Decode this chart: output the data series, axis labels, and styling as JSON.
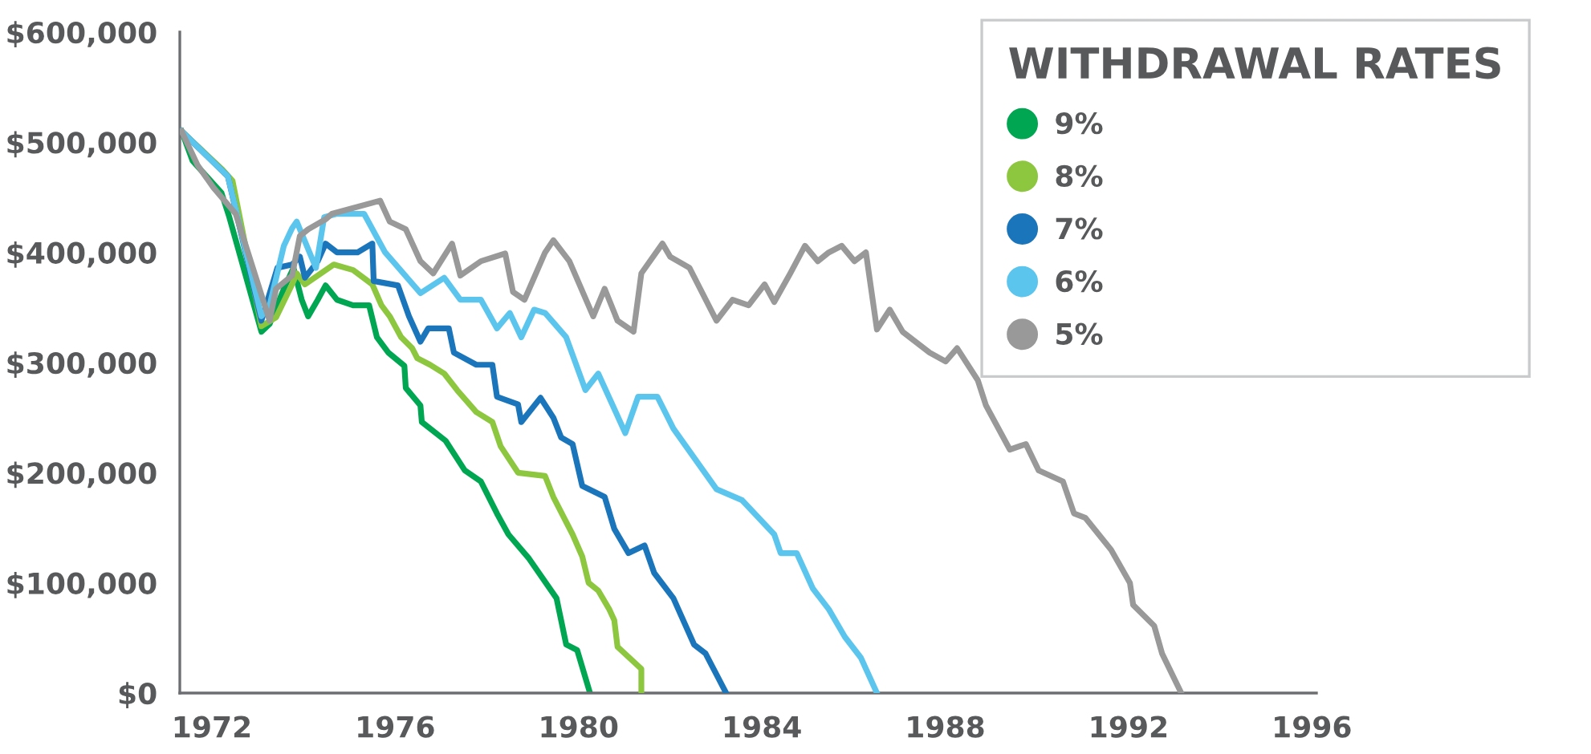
{
  "chart_data": {
    "type": "line",
    "legend_title": "WITHDRAWAL RATES",
    "legend": "top right",
    "grid": false,
    "marker": "none",
    "line_style": "solid",
    "xlim": [
      1971.3,
      1996.1
    ],
    "xticks": [
      1972,
      1976,
      1980,
      1984,
      1988,
      1992,
      1996
    ],
    "ylim": [
      0,
      600000
    ],
    "yticks": [
      {
        "value": 0,
        "label": "$0"
      },
      {
        "value": 100000,
        "label": "$100,000"
      },
      {
        "value": 200000,
        "label": "$200,000"
      },
      {
        "value": 300000,
        "label": "$300,000"
      },
      {
        "value": 400000,
        "label": "$400,000"
      },
      {
        "value": 500000,
        "label": "$500,000"
      },
      {
        "value": 600000,
        "label": "$600,000"
      }
    ],
    "series": [
      {
        "name": "9%",
        "color": "#00a651",
        "x": [
          1971.34,
          1971.58,
          1972.21,
          1972.38,
          1973.08,
          1973.26,
          1973.57,
          1973.78,
          1973.96,
          1974.1,
          1974.31,
          1974.48,
          1974.73,
          1975.08,
          1975.43,
          1975.6,
          1975.85,
          1976.2,
          1976.23,
          1976.55,
          1976.58,
          1977.1,
          1977.52,
          1977.87,
          1978.22,
          1978.47,
          1978.92,
          1979.52,
          1979.73,
          1979.97,
          1980.25
        ],
        "values": [
          510000,
          483000,
          454000,
          432000,
          328000,
          335000,
          367000,
          386000,
          357000,
          342000,
          357000,
          370000,
          357000,
          352000,
          352000,
          323000,
          309000,
          297000,
          277000,
          261000,
          246000,
          229000,
          202000,
          192000,
          163000,
          144000,
          122000,
          86000,
          44000,
          39000,
          0
        ]
      },
      {
        "name": "8%",
        "color": "#8dc63f",
        "x": [
          1971.34,
          1972.21,
          1972.45,
          1973.08,
          1973.4,
          1973.75,
          1973.85,
          1974.03,
          1974.38,
          1974.66,
          1975.08,
          1975.5,
          1975.7,
          1975.88,
          1976.13,
          1976.37,
          1976.48,
          1976.76,
          1977.07,
          1977.35,
          1977.77,
          1978.12,
          1978.3,
          1978.68,
          1979.27,
          1979.45,
          1979.87,
          1980.08,
          1980.22,
          1980.43,
          1980.67,
          1980.78,
          1980.85,
          1981.37,
          1981.37
        ],
        "values": [
          510000,
          476000,
          465000,
          333000,
          341000,
          371000,
          381000,
          371000,
          381000,
          389000,
          384000,
          371000,
          352000,
          342000,
          323000,
          313000,
          304000,
          298000,
          290000,
          275000,
          255000,
          246000,
          224000,
          200000,
          197000,
          178000,
          144000,
          124000,
          100000,
          93000,
          76000,
          66000,
          42000,
          22000,
          0
        ]
      },
      {
        "name": "7%",
        "color": "#1b75bb",
        "x": [
          1971.34,
          1972.35,
          1973.08,
          1973.43,
          1973.75,
          1973.92,
          1974.03,
          1974.31,
          1974.48,
          1974.73,
          1975.18,
          1975.5,
          1975.53,
          1976.06,
          1976.3,
          1976.55,
          1976.72,
          1977.17,
          1977.28,
          1977.77,
          1978.12,
          1978.22,
          1978.68,
          1978.75,
          1979.17,
          1979.45,
          1979.62,
          1979.87,
          1980.08,
          1980.57,
          1980.78,
          1981.09,
          1981.44,
          1981.65,
          1982.07,
          1982.52,
          1982.77,
          1983.22
        ],
        "values": [
          510000,
          469000,
          338000,
          386000,
          389000,
          396000,
          377000,
          392000,
          408000,
          400000,
          400000,
          408000,
          374000,
          370000,
          342000,
          319000,
          331000,
          331000,
          309000,
          298000,
          298000,
          269000,
          262000,
          246000,
          268000,
          250000,
          232000,
          226000,
          188000,
          178000,
          149000,
          127000,
          134000,
          109000,
          86000,
          44000,
          36000,
          0
        ]
      },
      {
        "name": "6%",
        "color": "#5bc5ee",
        "x": [
          1971.34,
          1972.35,
          1973.08,
          1973.26,
          1973.57,
          1973.75,
          1973.85,
          1974.27,
          1974.45,
          1974.73,
          1975.32,
          1975.78,
          1976.55,
          1977.07,
          1977.42,
          1977.87,
          1978.22,
          1978.5,
          1978.75,
          1979.03,
          1979.27,
          1979.73,
          1980.15,
          1980.43,
          1981.02,
          1981.3,
          1981.72,
          1982.07,
          1983.01,
          1983.57,
          1984.27,
          1984.41,
          1984.76,
          1985.11,
          1985.46,
          1985.81,
          1986.16,
          1986.51
        ],
        "values": [
          510000,
          469000,
          342000,
          352000,
          406000,
          422000,
          428000,
          386000,
          432000,
          435000,
          435000,
          400000,
          363000,
          377000,
          357000,
          357000,
          331000,
          345000,
          323000,
          348000,
          345000,
          323000,
          275000,
          290000,
          236000,
          269000,
          269000,
          240000,
          185000,
          175000,
          144000,
          127000,
          127000,
          95000,
          76000,
          51000,
          32000,
          0
        ]
      },
      {
        "name": "5%",
        "color": "#999999",
        "x": [
          1971.34,
          1971.69,
          1972.03,
          1972.52,
          1973.26,
          1973.4,
          1973.75,
          1973.92,
          1974.1,
          1974.48,
          1974.62,
          1975.67,
          1975.88,
          1976.23,
          1976.55,
          1976.83,
          1977.24,
          1977.42,
          1977.87,
          1978.4,
          1978.57,
          1978.82,
          1979.27,
          1979.45,
          1979.8,
          1980.32,
          1980.57,
          1980.85,
          1981.2,
          1981.37,
          1981.83,
          1982.0,
          1982.42,
          1983.01,
          1983.36,
          1983.71,
          1984.06,
          1984.27,
          1984.62,
          1984.94,
          1985.22,
          1985.46,
          1985.74,
          1986.02,
          1986.27,
          1986.51,
          1986.79,
          1987.07,
          1987.66,
          1988.01,
          1988.26,
          1988.71,
          1988.89,
          1989.41,
          1989.76,
          1990.04,
          1990.57,
          1990.81,
          1991.06,
          1991.62,
          1992.03,
          1992.1,
          1992.56,
          1992.73,
          1993.15
        ],
        "values": [
          510000,
          479000,
          459000,
          435000,
          338000,
          367000,
          379000,
          415000,
          421000,
          430000,
          435000,
          447000,
          428000,
          421000,
          392000,
          381000,
          408000,
          379000,
          392000,
          399000,
          364000,
          357000,
          400000,
          411000,
          392000,
          342000,
          367000,
          338000,
          328000,
          381000,
          408000,
          396000,
          386000,
          338000,
          357000,
          352000,
          371000,
          355000,
          381000,
          406000,
          392000,
          400000,
          406000,
          392000,
          400000,
          330000,
          348000,
          328000,
          309000,
          301000,
          313000,
          284000,
          261000,
          221000,
          226000,
          202000,
          192000,
          163000,
          159000,
          130000,
          100000,
          80000,
          61000,
          36000,
          0
        ]
      }
    ]
  }
}
